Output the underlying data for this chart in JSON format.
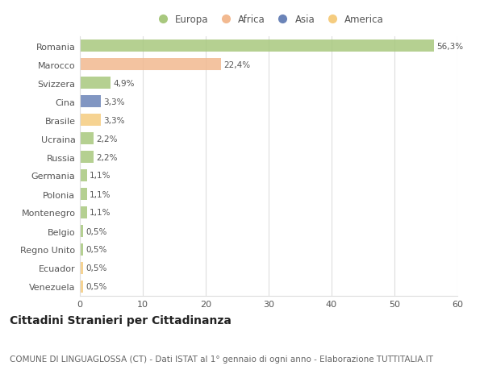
{
  "countries": [
    "Romania",
    "Marocco",
    "Svizzera",
    "Cina",
    "Brasile",
    "Ucraina",
    "Russia",
    "Germania",
    "Polonia",
    "Montenegro",
    "Belgio",
    "Regno Unito",
    "Ecuador",
    "Venezuela"
  ],
  "values": [
    56.3,
    22.4,
    4.9,
    3.3,
    3.3,
    2.2,
    2.2,
    1.1,
    1.1,
    1.1,
    0.5,
    0.5,
    0.5,
    0.5
  ],
  "labels": [
    "56,3%",
    "22,4%",
    "4,9%",
    "3,3%",
    "3,3%",
    "2,2%",
    "2,2%",
    "1,1%",
    "1,1%",
    "1,1%",
    "0,5%",
    "0,5%",
    "0,5%",
    "0,5%"
  ],
  "colors": [
    "#a8c87e",
    "#f2b990",
    "#a8c87e",
    "#6b84b8",
    "#f5cc7f",
    "#a8c87e",
    "#a8c87e",
    "#a8c87e",
    "#a8c87e",
    "#a8c87e",
    "#a8c87e",
    "#a8c87e",
    "#f5cc7f",
    "#f5cc7f"
  ],
  "legend_labels": [
    "Europa",
    "Africa",
    "Asia",
    "America"
  ],
  "legend_colors": [
    "#a8c87e",
    "#f2b990",
    "#6b84b8",
    "#f5cc7f"
  ],
  "title": "Cittadini Stranieri per Cittadinanza",
  "subtitle": "COMUNE DI LINGUAGLOSSA (CT) - Dati ISTAT al 1° gennaio di ogni anno - Elaborazione TUTTITALIA.IT",
  "xlim": [
    0,
    60
  ],
  "xticks": [
    0,
    10,
    20,
    30,
    40,
    50,
    60
  ],
  "background_color": "#ffffff",
  "grid_color": "#dddddd",
  "bar_height": 0.65,
  "title_fontsize": 10,
  "subtitle_fontsize": 7.5,
  "label_fontsize": 7.5,
  "tick_fontsize": 8,
  "legend_fontsize": 8.5
}
